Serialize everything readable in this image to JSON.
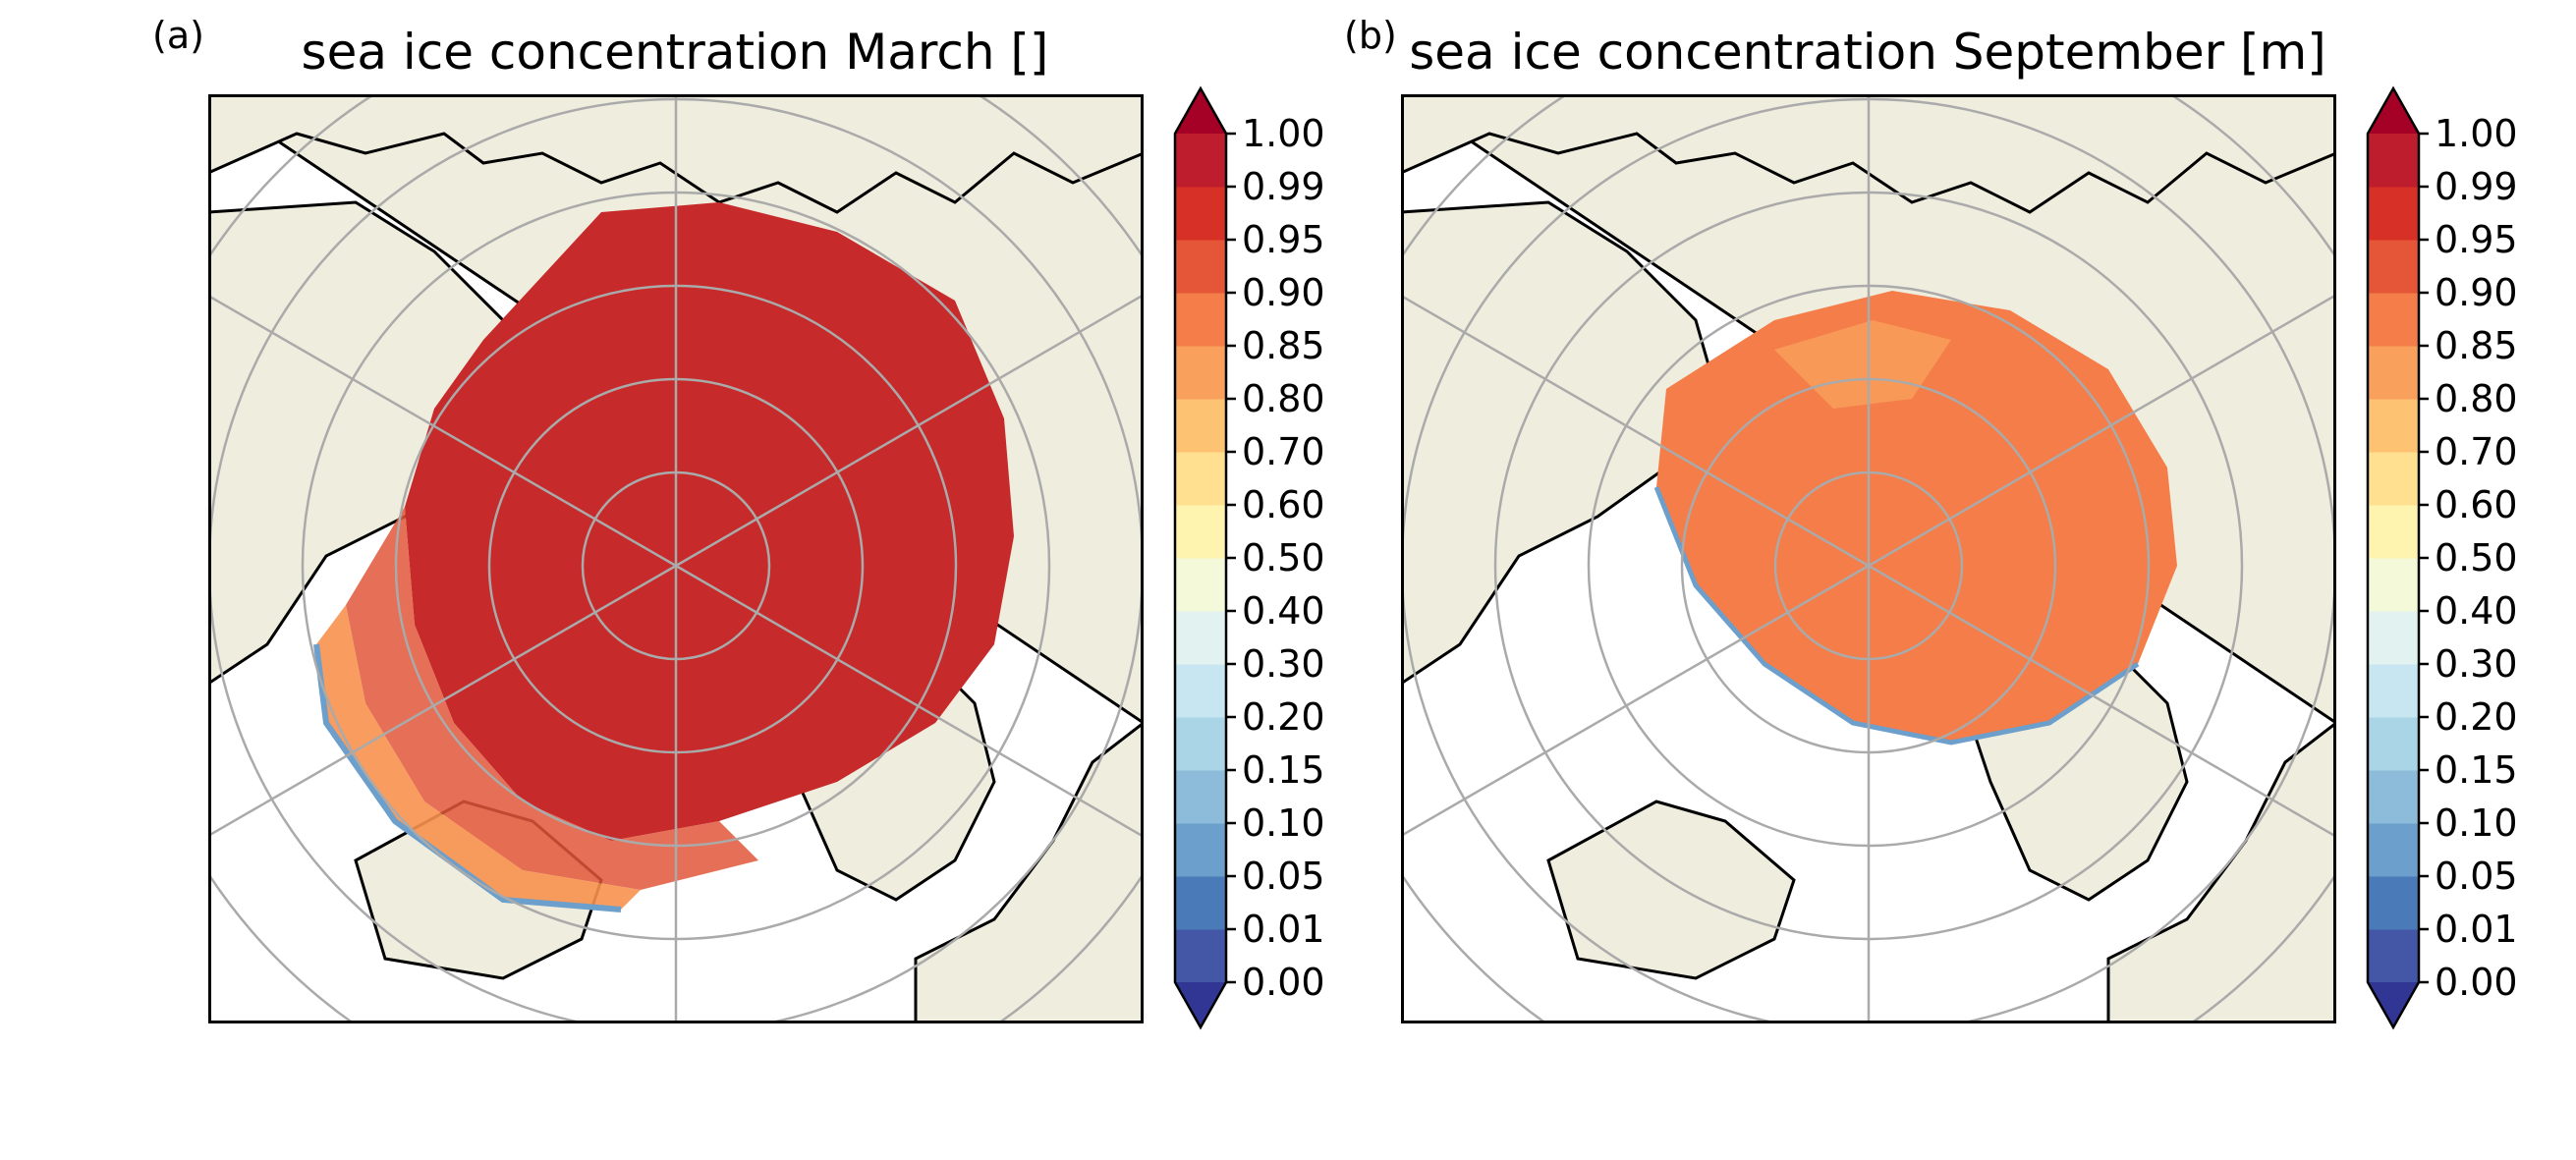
{
  "colors": {
    "land": "#efedde",
    "ocean": "#ffffff",
    "coast": "#000000",
    "grid": "#aaaaaa"
  },
  "colorbar": {
    "levels": [
      "0.00",
      "0.01",
      "0.05",
      "0.10",
      "0.15",
      "0.20",
      "0.30",
      "0.40",
      "0.50",
      "0.60",
      "0.70",
      "0.80",
      "0.85",
      "0.90",
      "0.95",
      "0.99",
      "1.00"
    ],
    "bin_colors": [
      "#4357a6",
      "#4a7ab7",
      "#6c9fcb",
      "#8cbcda",
      "#aad5e6",
      "#c7e6f1",
      "#e1f2f1",
      "#f3f9d9",
      "#fff3b0",
      "#fee090",
      "#fdc373",
      "#f9a05d",
      "#f47d49",
      "#e55638",
      "#d73027",
      "#bd1d2c"
    ],
    "under_color": "#313695",
    "over_color": "#a50026",
    "extend": "both"
  },
  "panels": [
    {
      "label": "(a)",
      "title": "sea ice concentration March []",
      "month": "March",
      "typical_concentration": [
        0.95,
        1.0
      ]
    },
    {
      "label": "(b)",
      "title": "sea ice concentration September [m]",
      "month": "September",
      "typical_concentration": [
        0.85,
        0.95
      ]
    }
  ]
}
